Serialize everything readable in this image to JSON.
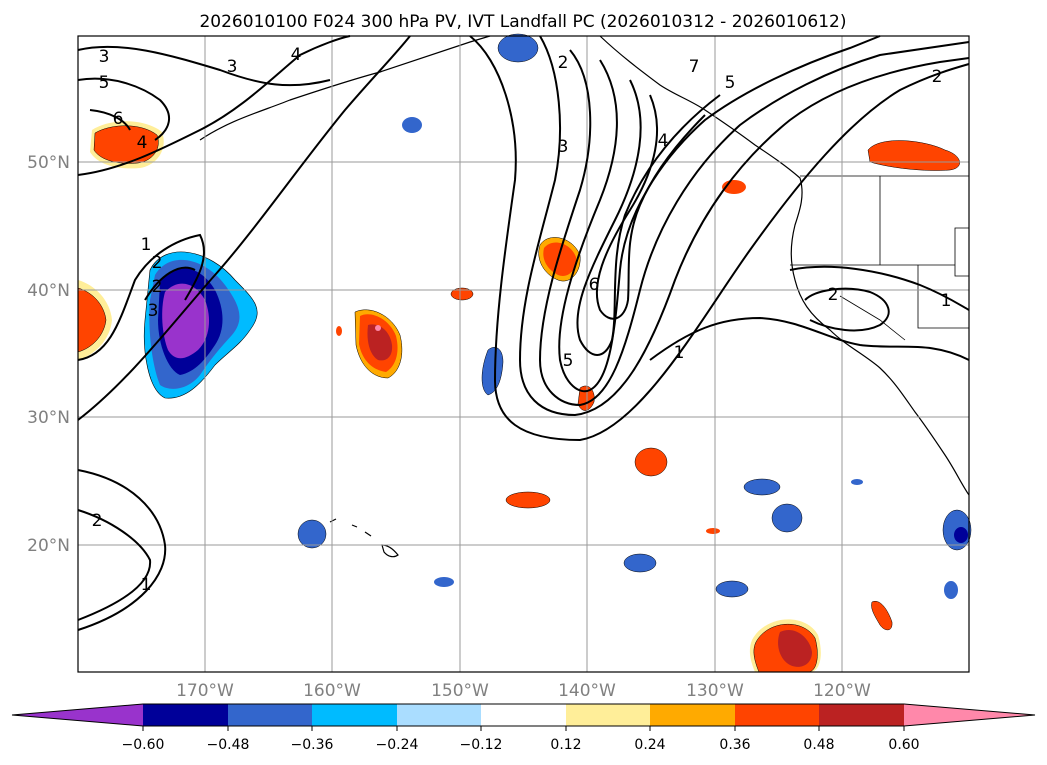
{
  "title": "2026010100 F024 300 hPa PV, IVT Landfall PC (2026010312 - 2026010612)",
  "axes": {
    "lon_ticks": [
      "170°W",
      "160°W",
      "150°W",
      "140°W",
      "130°W",
      "120°W"
    ],
    "lat_ticks": [
      "50°N",
      "40°N",
      "30°N",
      "20°N"
    ]
  },
  "contour_labels": [
    "3",
    "4",
    "3",
    "5",
    "6",
    "4",
    "2",
    "7",
    "5",
    "2",
    "3",
    "4",
    "6",
    "5",
    "1",
    "2",
    "1",
    "2",
    "3",
    "2",
    "1",
    "2",
    "1"
  ],
  "colorbar": {
    "ticks": [
      "−0.60",
      "−0.48",
      "−0.36",
      "−0.24",
      "−0.12",
      "0.12",
      "0.24",
      "0.36",
      "0.48",
      "0.60"
    ],
    "colors": [
      "#9933cc",
      "#000099",
      "#3366cc",
      "#00bbff",
      "#aaddff",
      "#ffffff",
      "#ffee99",
      "#ffaa00",
      "#ff4400",
      "#bb2222",
      "#ff88aa"
    ]
  },
  "colors": {
    "neg_dark": "#000099",
    "neg_mid": "#3366cc",
    "neg_light": "#00bbff",
    "neg_purple": "#9933cc",
    "pos_yellow": "#ffee99",
    "pos_orange": "#ffaa00",
    "pos_red": "#ff4400",
    "pos_dark": "#bb2222",
    "pos_pink": "#ff88aa"
  }
}
